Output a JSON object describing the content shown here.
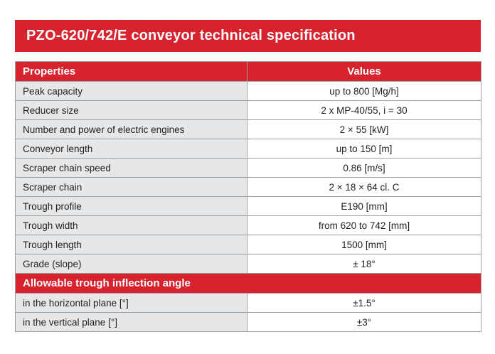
{
  "title": "PZO-620/742/E conveyor technical specification",
  "colors": {
    "accent_red": "#d6232d",
    "property_cell_gray": "#e6e7e8",
    "border_gray": "#9ca0a3",
    "text_dark": "#231f20",
    "header_text": "#ffffff"
  },
  "table": {
    "headers": [
      "Properties",
      "Values"
    ],
    "rows": [
      {
        "property": "Peak capacity",
        "value": "up to 800 [Mg/h]"
      },
      {
        "property": "Reducer size",
        "value": "2 x MP-40/55, i = 30"
      },
      {
        "property": "Number and power of electric engines",
        "value": "2 × 55 [kW]"
      },
      {
        "property": "Conveyor length",
        "value": "up to 150 [m]"
      },
      {
        "property": "Scraper chain speed",
        "value": "0.86 [m/s]"
      },
      {
        "property": "Scraper chain",
        "value": "2 × 18 × 64 cl. C"
      },
      {
        "property": "Trough profile",
        "value": "E190 [mm]"
      },
      {
        "property": "Trough width",
        "value": "from 620 to 742 [mm]"
      },
      {
        "property": "Trough length",
        "value": "1500 [mm]"
      },
      {
        "property": "Grade (slope)",
        "value": "± 18°"
      }
    ],
    "section_header": "Allowable trough inflection angle",
    "section_rows": [
      {
        "property": "in the horizontal plane [°]",
        "value": "±1.5°"
      },
      {
        "property": "in the vertical plane [°]",
        "value": "±3°"
      }
    ]
  }
}
